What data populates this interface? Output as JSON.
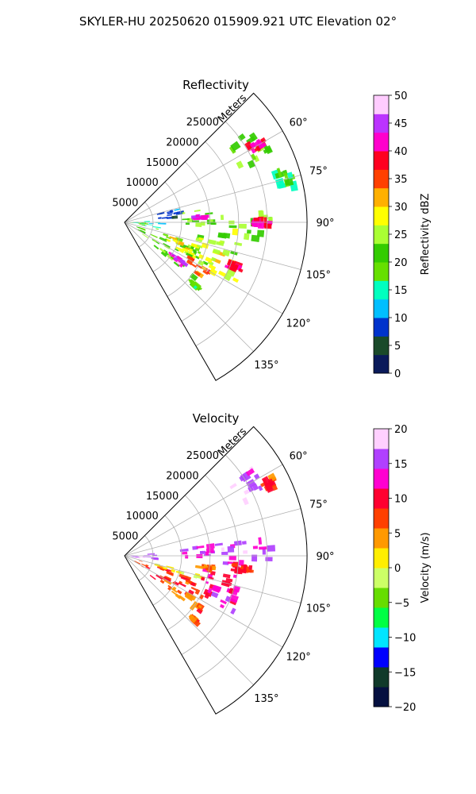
{
  "figure_title": "SKYLER-HU  20250620  015909.921 UTC Elevation 02°",
  "chart_data": [
    {
      "type": "heatmap",
      "projection": "polar-sector",
      "title": "Reflectivity",
      "radial_axis_label": "Meters",
      "radial_ticks": [
        5000,
        10000,
        15000,
        20000,
        25000
      ],
      "radial_tick_labels": [
        "5000",
        "10000",
        "15000",
        "20000",
        "25000"
      ],
      "radial_range": [
        0,
        32000
      ],
      "azimuth_range": [
        45,
        150
      ],
      "azimuth_ticks": [
        "60°",
        "75°",
        "90°",
        "105°",
        "120°",
        "135°"
      ],
      "grid": true,
      "colorbar": {
        "label": "Reflectivity dBZ",
        "range": [
          0,
          50
        ],
        "ticks": [
          "0",
          "5",
          "10",
          "15",
          "20",
          "25",
          "30",
          "35",
          "40",
          "45",
          "50"
        ]
      },
      "echo_regions": [
        {
          "az": 118,
          "r": 9500,
          "daz": 22,
          "dr": 14000,
          "level": 22
        },
        {
          "az": 112,
          "r": 11500,
          "daz": 10,
          "dr": 7000,
          "level": 30
        },
        {
          "az": 122,
          "r": 14500,
          "daz": 8,
          "dr": 6000,
          "level": 36
        },
        {
          "az": 125,
          "r": 11500,
          "daz": 4,
          "dr": 3000,
          "level": 44
        },
        {
          "az": 114,
          "r": 19000,
          "daz": 12,
          "dr": 6000,
          "level": 28
        },
        {
          "az": 112,
          "r": 21000,
          "daz": 3,
          "dr": 2500,
          "level": 38
        },
        {
          "az": 104,
          "r": 16500,
          "daz": 9,
          "dr": 8000,
          "level": 26
        },
        {
          "az": 92,
          "r": 21500,
          "daz": 13,
          "dr": 9000,
          "level": 24
        },
        {
          "az": 90,
          "r": 24000,
          "daz": 3,
          "dr": 3000,
          "level": 40
        },
        {
          "az": 86,
          "r": 13500,
          "daz": 12,
          "dr": 7000,
          "level": 24
        },
        {
          "az": 86,
          "r": 13500,
          "daz": 3,
          "dr": 2200,
          "level": 44
        },
        {
          "az": 60,
          "r": 25500,
          "daz": 12,
          "dr": 6000,
          "level": 22
        },
        {
          "az": 60,
          "r": 27000,
          "daz": 3,
          "dr": 3000,
          "level": 40
        },
        {
          "az": 75,
          "r": 29500,
          "daz": 6,
          "dr": 3500,
          "level": 18
        },
        {
          "az": 95,
          "r": 4000,
          "daz": 18,
          "dr": 6000,
          "level": 15
        },
        {
          "az": 80,
          "r": 8000,
          "daz": 10,
          "dr": 4000,
          "level": 8
        },
        {
          "az": 132,
          "r": 16500,
          "daz": 2,
          "dr": 1500,
          "level": 18
        }
      ]
    },
    {
      "type": "heatmap",
      "projection": "polar-sector",
      "title": "Velocity",
      "radial_axis_label": "Meters",
      "radial_ticks": [
        5000,
        10000,
        15000,
        20000,
        25000
      ],
      "radial_tick_labels": [
        "5000",
        "10000",
        "15000",
        "20000",
        "25000"
      ],
      "radial_range": [
        0,
        32000
      ],
      "azimuth_range": [
        45,
        150
      ],
      "azimuth_ticks": [
        "60°",
        "75°",
        "90°",
        "105°",
        "120°",
        "135°"
      ],
      "grid": true,
      "colorbar": {
        "label": "Velocity (m/s)",
        "range": [
          -20,
          20
        ],
        "ticks": [
          "−20",
          "−15",
          "−10",
          "−5",
          "0",
          "5",
          "10",
          "15",
          "20"
        ]
      },
      "echo_regions": [
        {
          "az": 118,
          "r": 9500,
          "daz": 20,
          "dr": 14000,
          "level": 8
        },
        {
          "az": 124,
          "r": 13000,
          "daz": 7,
          "dr": 7000,
          "level": 5
        },
        {
          "az": 106,
          "r": 10000,
          "daz": 4,
          "dr": 9000,
          "level": 1
        },
        {
          "az": 112,
          "r": 19000,
          "daz": 12,
          "dr": 6000,
          "level": 13
        },
        {
          "az": 104,
          "r": 16500,
          "daz": 9,
          "dr": 7000,
          "level": 11
        },
        {
          "az": 90,
          "r": 21500,
          "daz": 13,
          "dr": 9000,
          "level": 15
        },
        {
          "az": 96,
          "r": 20500,
          "daz": 3,
          "dr": 4000,
          "level": 9
        },
        {
          "az": 86,
          "r": 13500,
          "daz": 12,
          "dr": 7000,
          "level": 14
        },
        {
          "az": 60,
          "r": 25500,
          "daz": 12,
          "dr": 6000,
          "level": 16
        },
        {
          "az": 64,
          "r": 28500,
          "daz": 4,
          "dr": 2500,
          "level": 8
        },
        {
          "az": 93,
          "r": 3500,
          "daz": 14,
          "dr": 5000,
          "level": 16
        },
        {
          "az": 132,
          "r": 16500,
          "daz": 2,
          "dr": 1500,
          "level": 7
        },
        {
          "az": 98,
          "r": 14500,
          "daz": 3,
          "dr": 2500,
          "level": 6
        }
      ]
    }
  ],
  "colors": {
    "reflectivity_stops": [
      "#0a1a5a",
      "#1a4a2a",
      "#0033cc",
      "#00bfff",
      "#00ffbf",
      "#66e000",
      "#33cc00",
      "#aaff33",
      "#ffff00",
      "#ffb000",
      "#ff4000",
      "#ff0020",
      "#ff00cc",
      "#bb33ff",
      "#ffccff"
    ],
    "velocity_stops": [
      "#051040",
      "#103a2a",
      "#0000ff",
      "#00e5ff",
      "#00ff44",
      "#66dd00",
      "#ccff66",
      "#ffee00",
      "#ff9900",
      "#ff4000",
      "#ff0030",
      "#ff00d0",
      "#b040ff",
      "#ffd0ff"
    ],
    "grid": "#b0b0b0",
    "axis": "#000000"
  }
}
